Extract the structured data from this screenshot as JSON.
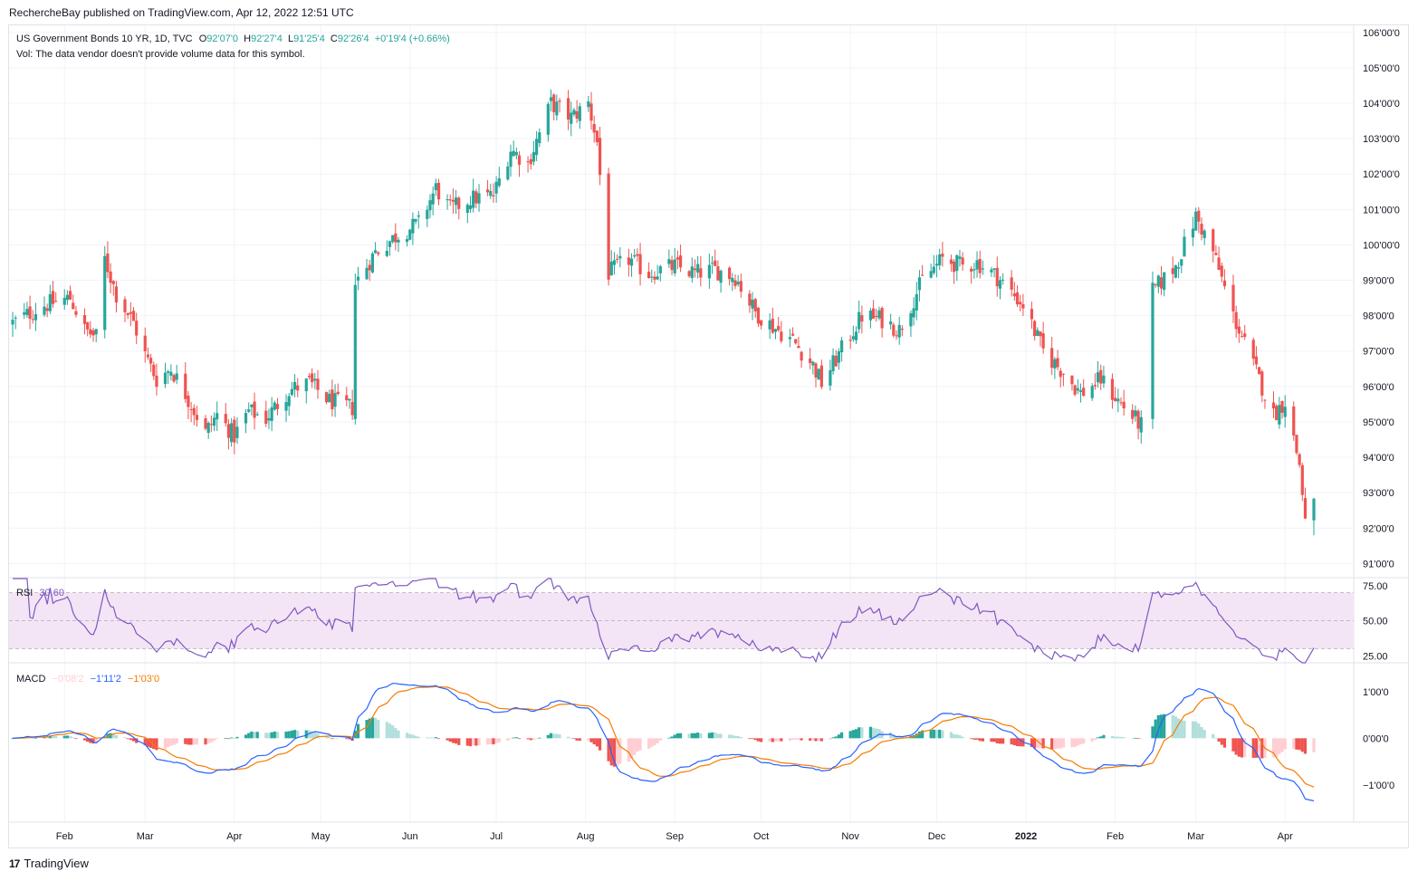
{
  "publisher": "RechercheBay published on TradingView.com, Apr 12, 2022 12:51 UTC",
  "footer": {
    "brand": "TradingView"
  },
  "legend": {
    "symbol": "US Government Bonds 10 YR, 1D, TVC",
    "o_label": "O",
    "o": "92'07'0",
    "h_label": "H",
    "h": "92'27'4",
    "l_label": "L",
    "l": "91'25'4",
    "c_label": "C",
    "c": "92'26'4",
    "change": "+0'19'4 (+0.66%)",
    "vol": "Vol: The data vendor doesn't provide volume data for this symbol."
  },
  "rsi_legend": {
    "name": "RSI",
    "value": "30.60"
  },
  "macd_legend": {
    "name": "MACD",
    "hist": "−0'08'2",
    "macd": "−1'11'2",
    "signal": "−1'03'0"
  },
  "colors": {
    "up": "#26a69a",
    "down": "#ef5350",
    "rsi": "#7e57c2",
    "rsi_band": "#f3e5f5",
    "macd": "#2962ff",
    "signal": "#f57c00",
    "hist_up_strong": "#26a69a",
    "hist_up_weak": "#b2dfdb",
    "hist_down_strong": "#ef5350",
    "hist_down_weak": "#ffcdd2",
    "grid": "#f0f3fa",
    "text": "#131722"
  },
  "chart_data": [
    {
      "type": "candlestick",
      "title": "US Government Bonds 10 YR, 1D, TVC",
      "ylim": [
        90.6,
        106.2
      ],
      "y_tick_labels": [
        "106'00'0",
        "105'00'0",
        "104'00'0",
        "103'00'0",
        "102'00'0",
        "101'00'0",
        "100'00'0",
        "99'00'0",
        "98'00'0",
        "97'00'0",
        "96'00'0",
        "95'00'0",
        "94'00'0",
        "93'00'0",
        "92'00'0",
        "91'00'0"
      ],
      "y_tick_values": [
        106,
        105,
        104,
        103,
        102,
        101,
        100,
        99,
        98,
        97,
        96,
        95,
        94,
        93,
        92,
        91
      ],
      "x_tick_labels": [
        "Feb",
        "Mar",
        "Apr",
        "May",
        "Jun",
        "Jul",
        "Aug",
        "Sep",
        "Oct",
        "Nov",
        "Dec",
        "2022",
        "Feb",
        "Mar",
        "Apr"
      ],
      "x_tick_dates": [
        "2021-02-01",
        "2021-03-01",
        "2021-04-01",
        "2021-05-01",
        "2021-06-01",
        "2021-07-01",
        "2021-08-01",
        "2021-09-01",
        "2021-10-01",
        "2021-11-01",
        "2021-12-01",
        "2022-01-01",
        "2022-02-01",
        "2022-03-01",
        "2022-04-01"
      ],
      "x_range": [
        "2021-01-14",
        "2022-04-11"
      ],
      "close_keyframes": [
        [
          "2021-01-14",
          97.8
        ],
        [
          "2021-01-25",
          98.3
        ],
        [
          "2021-02-03",
          98.5
        ],
        [
          "2021-02-08",
          97.6
        ],
        [
          "2021-02-12",
          97.4
        ],
        [
          "2021-02-15",
          99.6
        ],
        [
          "2021-02-19",
          98.6
        ],
        [
          "2021-02-25",
          97.8
        ],
        [
          "2021-03-01",
          96.9
        ],
        [
          "2021-03-05",
          96.2
        ],
        [
          "2021-03-10",
          96.5
        ],
        [
          "2021-03-15",
          95.8
        ],
        [
          "2021-03-22",
          94.7
        ],
        [
          "2021-03-26",
          95.2
        ],
        [
          "2021-04-01",
          94.6
        ],
        [
          "2021-04-06",
          95.3
        ],
        [
          "2021-04-12",
          95.1
        ],
        [
          "2021-04-20",
          95.9
        ],
        [
          "2021-04-27",
          96.1
        ],
        [
          "2021-05-04",
          95.6
        ],
        [
          "2021-05-12",
          95.4
        ],
        [
          "2021-05-13",
          98.9
        ],
        [
          "2021-05-20",
          99.8
        ],
        [
          "2021-05-28",
          100.3
        ],
        [
          "2021-06-04",
          100.6
        ],
        [
          "2021-06-10",
          101.6
        ],
        [
          "2021-06-15",
          101.0
        ],
        [
          "2021-06-22",
          101.3
        ],
        [
          "2021-06-30",
          101.4
        ],
        [
          "2021-07-06",
          102.7
        ],
        [
          "2021-07-12",
          102.3
        ],
        [
          "2021-07-20",
          104.0
        ],
        [
          "2021-07-27",
          103.6
        ],
        [
          "2021-08-02",
          104.0
        ],
        [
          "2021-08-05",
          102.9
        ],
        [
          "2021-08-09",
          99.2
        ],
        [
          "2021-08-16",
          99.6
        ],
        [
          "2021-08-23",
          99.2
        ],
        [
          "2021-09-01",
          99.4
        ],
        [
          "2021-09-08",
          99.2
        ],
        [
          "2021-09-15",
          99.3
        ],
        [
          "2021-09-22",
          99.1
        ],
        [
          "2021-09-29",
          98.1
        ],
        [
          "2021-10-05",
          97.7
        ],
        [
          "2021-10-12",
          97.3
        ],
        [
          "2021-10-19",
          96.6
        ],
        [
          "2021-10-22",
          96.1
        ],
        [
          "2021-10-28",
          96.9
        ],
        [
          "2021-11-05",
          98.0
        ],
        [
          "2021-11-12",
          97.9
        ],
        [
          "2021-11-18",
          97.6
        ],
        [
          "2021-11-26",
          99.0
        ],
        [
          "2021-12-03",
          99.6
        ],
        [
          "2021-12-10",
          99.4
        ],
        [
          "2021-12-15",
          99.5
        ],
        [
          "2021-12-22",
          99.1
        ],
        [
          "2021-12-31",
          98.3
        ],
        [
          "2022-01-07",
          97.0
        ],
        [
          "2022-01-14",
          96.4
        ],
        [
          "2022-01-20",
          95.8
        ],
        [
          "2022-01-27",
          96.2
        ],
        [
          "2022-02-03",
          95.5
        ],
        [
          "2022-02-10",
          94.9
        ],
        [
          "2022-02-14",
          98.7
        ],
        [
          "2022-02-22",
          99.4
        ],
        [
          "2022-03-01",
          100.8
        ],
        [
          "2022-03-07",
          99.8
        ],
        [
          "2022-03-14",
          98.0
        ],
        [
          "2022-03-21",
          96.6
        ],
        [
          "2022-03-28",
          95.2
        ],
        [
          "2022-04-01",
          95.6
        ],
        [
          "2022-04-06",
          93.8
        ],
        [
          "2022-04-08",
          92.2
        ],
        [
          "2022-04-11",
          92.8
        ]
      ],
      "last_candle": {
        "open": 92.22,
        "high": 92.86,
        "low": 91.8,
        "close": 92.83
      }
    },
    {
      "type": "line",
      "title": "RSI",
      "ylim": [
        20,
        80
      ],
      "y_tick_labels": [
        "75.00",
        "50.00",
        "25.00"
      ],
      "y_tick_values": [
        75,
        50,
        25
      ],
      "band": [
        30,
        70
      ],
      "last_value": 30.6
    },
    {
      "type": "line",
      "title": "MACD",
      "ylim": [
        -1.8,
        1.6
      ],
      "y_tick_labels": [
        "1'00'0",
        "0'00'0",
        "−1'00'0"
      ],
      "y_tick_values": [
        1,
        0,
        -1
      ],
      "series": [
        {
          "name": "MACD",
          "last_value": -1.35
        },
        {
          "name": "Signal",
          "last_value": -1.09
        },
        {
          "name": "Histogram",
          "last_value": -0.26
        }
      ]
    }
  ]
}
